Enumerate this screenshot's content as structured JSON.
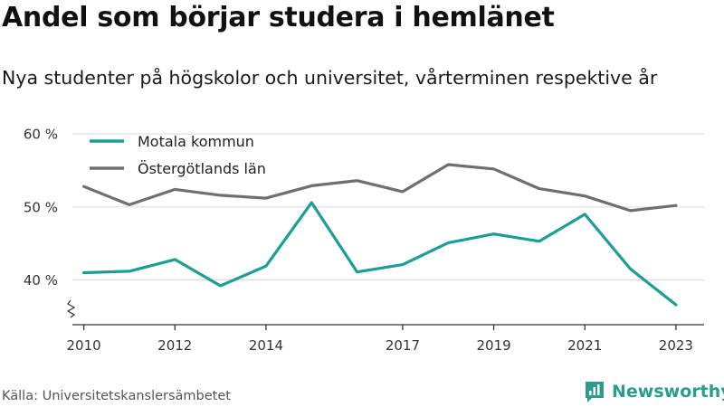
{
  "title": "Andel som börjar studera i hemlänet",
  "subtitle": "Nya studenter på högskolor och universitet, vårterminen respektive år",
  "source": "Källa: Universitetskanslersämbetet",
  "brand": {
    "name": "Newsworthy",
    "icon": "chart-bubble-icon"
  },
  "colors": {
    "motala": "#1b9e93",
    "ostergotland": "#6e6e73",
    "grid": "#dddddd",
    "axis": "#333333"
  },
  "chart_data": {
    "type": "line",
    "title": "Andel som börjar studera i hemlänet",
    "x": [
      2010,
      2011,
      2012,
      2013,
      2014,
      2015,
      2016,
      2017,
      2018,
      2019,
      2020,
      2021,
      2022,
      2023
    ],
    "x_tick_labels": [
      "2010",
      "2012",
      "2014",
      "2017",
      "2019",
      "2021",
      "2023"
    ],
    "y_tick_labels": [
      "40 %",
      "50 %",
      "60 %"
    ],
    "y_ticks": [
      40,
      50,
      60
    ],
    "ylim": [
      34,
      61
    ],
    "xlim": [
      2009.65,
      2023.3
    ],
    "grid": true,
    "axis_break": true,
    "legend": "top-left",
    "series": [
      {
        "name": "Motala kommun",
        "color": "#1b9e93",
        "values": [
          41.0,
          41.2,
          42.8,
          39.2,
          41.9,
          50.6,
          41.1,
          42.1,
          45.1,
          46.3,
          45.3,
          49.0,
          41.5,
          36.6
        ]
      },
      {
        "name": "Östergötlands län",
        "color": "#6e6e73",
        "values": [
          52.8,
          50.3,
          52.4,
          51.6,
          51.2,
          52.9,
          53.6,
          52.1,
          55.8,
          55.2,
          52.5,
          51.5,
          49.5,
          50.2
        ]
      }
    ]
  }
}
